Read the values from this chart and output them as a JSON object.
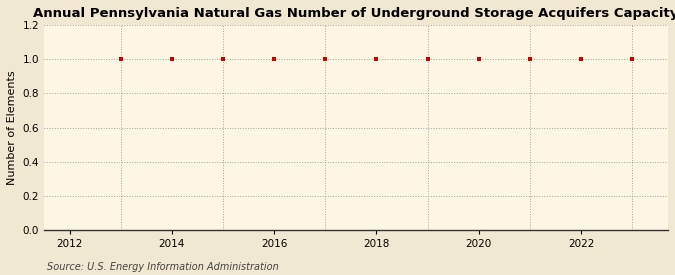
{
  "title": "Annual Pennsylvania Natural Gas Number of Underground Storage Acquifers Capacity",
  "ylabel": "Number of Elements",
  "source": "Source: U.S. Energy Information Administration",
  "x_values": [
    2013,
    2014,
    2015,
    2016,
    2017,
    2018,
    2019,
    2020,
    2021,
    2022,
    2023
  ],
  "y_values": [
    1.0,
    1.0,
    1.0,
    1.0,
    1.0,
    1.0,
    1.0,
    1.0,
    1.0,
    1.0,
    1.0
  ],
  "xlim": [
    2011.5,
    2023.7
  ],
  "ylim": [
    0.0,
    1.2
  ],
  "yticks": [
    0.0,
    0.2,
    0.4,
    0.6,
    0.8,
    1.0,
    1.2
  ],
  "xticks": [
    2012,
    2014,
    2016,
    2018,
    2020,
    2022
  ],
  "x_minor_ticks": [
    2012,
    2013,
    2014,
    2015,
    2016,
    2017,
    2018,
    2019,
    2020,
    2021,
    2022,
    2023
  ],
  "marker_color": "#cc0000",
  "marker": "s",
  "marker_size": 3.5,
  "background_color": "#fdf6e3",
  "outer_background": "#f0e8d0",
  "grid_color": "#999999",
  "title_fontsize": 9.5,
  "label_fontsize": 8,
  "tick_fontsize": 7.5,
  "source_fontsize": 7
}
